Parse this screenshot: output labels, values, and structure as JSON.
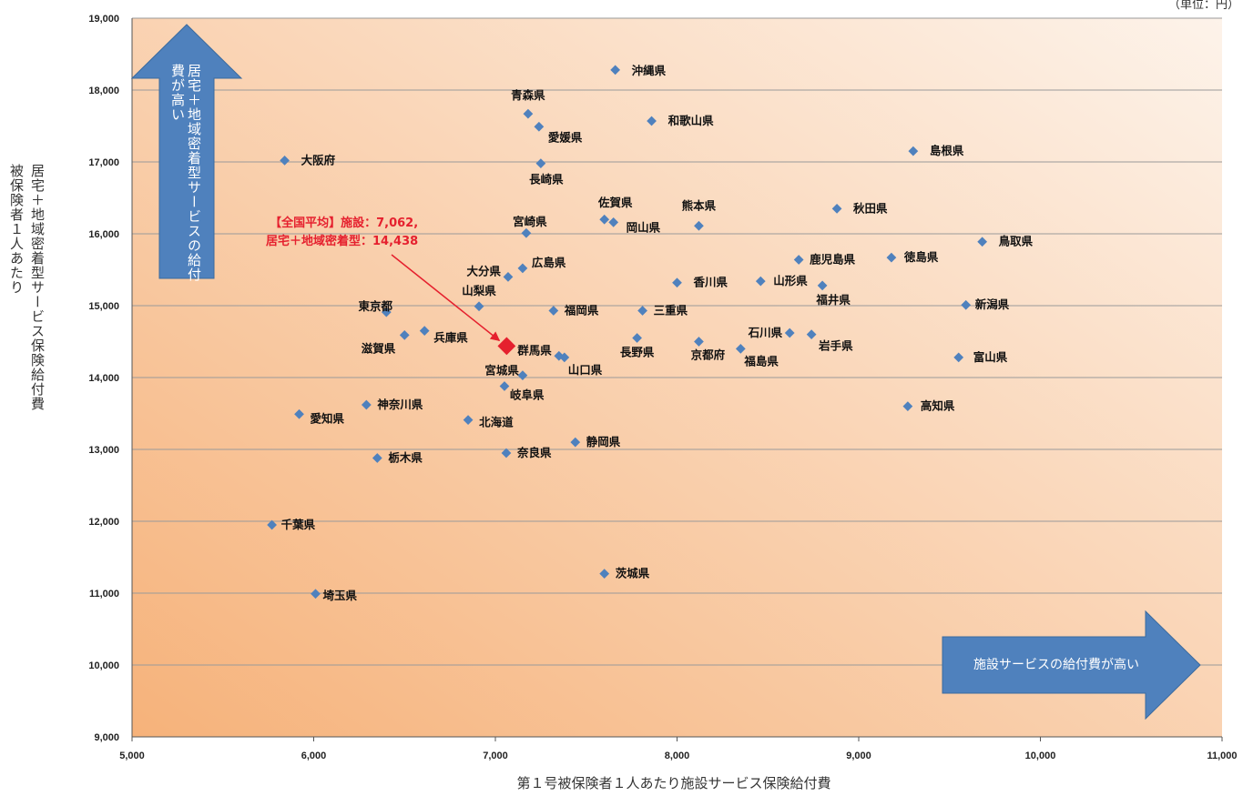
{
  "unit_note": "（単位：円）",
  "y_axis_label_lines": [
    "居宅＋地域密着型サービス保険給付費",
    "被保険者１人あたり"
  ],
  "x_axis_label": "第１号被保険者１人あたり施設サービス保険給付費",
  "arrow_up_text": "居宅＋地域密着型サービスの給付費が高い",
  "arrow_right_text": "施設サービスの給付費が高い",
  "average_label": {
    "line1": "【全国平均】施設：7,062,",
    "line2": "居宅＋地域密着型：14,438"
  },
  "colors": {
    "point": "#4f81bd",
    "average": "#e5202e",
    "arrow": "#4f81bd",
    "bg_light": "#fdf3ea",
    "bg_dark": "#f6b27a"
  },
  "chart_data": {
    "type": "scatter",
    "xlim": [
      5000,
      11000
    ],
    "ylim": [
      9000,
      19000
    ],
    "x_ticks": [
      "5,000",
      "6,000",
      "7,000",
      "8,000",
      "9,000",
      "10,000",
      "11,000"
    ],
    "y_ticks": [
      "9,000",
      "10,000",
      "11,000",
      "12,000",
      "13,000",
      "14,000",
      "15,000",
      "16,000",
      "17,000",
      "18,000",
      "19,000"
    ],
    "grid": "horizontal",
    "average": {
      "x": 7062,
      "y": 14438
    },
    "points": [
      {
        "name": "沖縄県",
        "x": 7660,
        "y": 18280
      },
      {
        "name": "青森県",
        "x": 7180,
        "y": 17670
      },
      {
        "name": "和歌山県",
        "x": 7860,
        "y": 17570
      },
      {
        "name": "愛媛県",
        "x": 7240,
        "y": 17490
      },
      {
        "name": "大阪府",
        "x": 5840,
        "y": 17020
      },
      {
        "name": "島根県",
        "x": 9300,
        "y": 17150
      },
      {
        "name": "長崎県",
        "x": 7250,
        "y": 16980
      },
      {
        "name": "秋田県",
        "x": 8880,
        "y": 16350
      },
      {
        "name": "佐賀県",
        "x": 7600,
        "y": 16200
      },
      {
        "name": "宮崎県",
        "x": 7170,
        "y": 16010
      },
      {
        "name": "岡山県",
        "x": 7650,
        "y": 16160
      },
      {
        "name": "熊本県",
        "x": 8120,
        "y": 16110
      },
      {
        "name": "鳥取県",
        "x": 9680,
        "y": 15890
      },
      {
        "name": "鹿児島県",
        "x": 8670,
        "y": 15640
      },
      {
        "name": "徳島県",
        "x": 9180,
        "y": 15670
      },
      {
        "name": "広島県",
        "x": 7150,
        "y": 15520
      },
      {
        "name": "大分県",
        "x": 7070,
        "y": 15400
      },
      {
        "name": "香川県",
        "x": 8000,
        "y": 15320
      },
      {
        "name": "山形県",
        "x": 8460,
        "y": 15340
      },
      {
        "name": "福井県",
        "x": 8800,
        "y": 15280
      },
      {
        "name": "山梨県",
        "x": 6910,
        "y": 14990
      },
      {
        "name": "新潟県",
        "x": 9590,
        "y": 15010
      },
      {
        "name": "東京都",
        "x": 6400,
        "y": 14910
      },
      {
        "name": "福岡県",
        "x": 7320,
        "y": 14930
      },
      {
        "name": "三重県",
        "x": 7810,
        "y": 14930
      },
      {
        "name": "兵庫県",
        "x": 6610,
        "y": 14650
      },
      {
        "name": "滋賀県",
        "x": 6500,
        "y": 14590
      },
      {
        "name": "長野県",
        "x": 7780,
        "y": 14550
      },
      {
        "name": "京都府",
        "x": 8120,
        "y": 14500
      },
      {
        "name": "石川県",
        "x": 8620,
        "y": 14620
      },
      {
        "name": "岩手県",
        "x": 8740,
        "y": 14600
      },
      {
        "name": "群馬県",
        "x": 7350,
        "y": 14300
      },
      {
        "name": "山口県",
        "x": 7380,
        "y": 14280
      },
      {
        "name": "福島県",
        "x": 8350,
        "y": 14400
      },
      {
        "name": "富山県",
        "x": 9550,
        "y": 14280
      },
      {
        "name": "宮城県",
        "x": 7150,
        "y": 14030
      },
      {
        "name": "岐阜県",
        "x": 7050,
        "y": 13880
      },
      {
        "name": "神奈川県",
        "x": 6290,
        "y": 13620
      },
      {
        "name": "愛知県",
        "x": 5920,
        "y": 13490
      },
      {
        "name": "北海道",
        "x": 6850,
        "y": 13410
      },
      {
        "name": "高知県",
        "x": 9270,
        "y": 13600
      },
      {
        "name": "静岡県",
        "x": 7440,
        "y": 13100
      },
      {
        "name": "奈良県",
        "x": 7060,
        "y": 12950
      },
      {
        "name": "栃木県",
        "x": 6350,
        "y": 12880
      },
      {
        "name": "千葉県",
        "x": 5770,
        "y": 11950
      },
      {
        "name": "茨城県",
        "x": 7600,
        "y": 11270
      },
      {
        "name": "埼玉県",
        "x": 6010,
        "y": 10990
      }
    ]
  }
}
